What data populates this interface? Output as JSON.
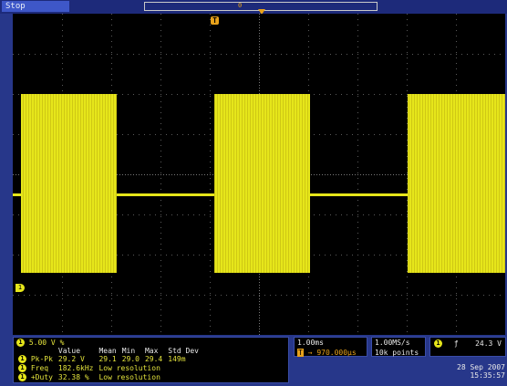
{
  "topbar": {
    "status": "Stop",
    "record_marker": "0"
  },
  "screen": {
    "trigger_marker": "T",
    "channel_marker": "1",
    "background": "#000000",
    "trace_color": "#e6e61a"
  },
  "vertical": {
    "channel": "1",
    "scale": "5.00 V",
    "coupling": "%"
  },
  "measurements": {
    "headers": [
      "",
      "Value",
      "Mean",
      "Min",
      "Max",
      "Std Dev"
    ],
    "rows": [
      {
        "channel": "1",
        "name": "Pk-Pk",
        "value": "29.2 V",
        "mean": "29.1",
        "min": "29.0",
        "max": "29.4",
        "std": "149m"
      },
      {
        "channel": "1",
        "name": "Freq",
        "value": "182.6kHz",
        "mean": "Low resolution",
        "min": "",
        "max": "",
        "std": ""
      },
      {
        "channel": "1",
        "name": "+Duty",
        "value": "32.38 %",
        "mean": "Low resolution",
        "min": "",
        "max": "",
        "std": ""
      }
    ]
  },
  "timebase": {
    "scale": "1.00ms",
    "delay_icon": "T",
    "delay": "970.000µs"
  },
  "acquisition": {
    "rate": "1.00MS/s",
    "points": "10k points"
  },
  "trigger": {
    "channel": "1",
    "slope": "ƒ",
    "level": "24.3 V"
  },
  "datetime": {
    "date": "28 Sep 2007",
    "time": "15:35:57"
  }
}
